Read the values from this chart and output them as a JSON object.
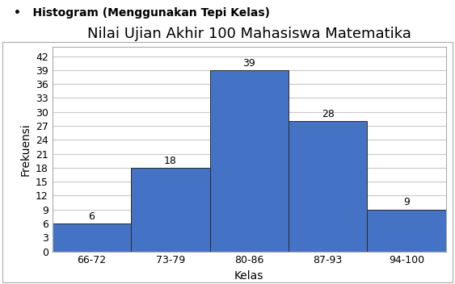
{
  "title": "Nilai Ujian Akhir 100 Mahasiswa Matematika",
  "xlabel": "Kelas",
  "ylabel": "Frekuensi",
  "categories": [
    "66-72",
    "73-79",
    "80-86",
    "87-93",
    "94-100"
  ],
  "values": [
    6,
    18,
    39,
    28,
    9
  ],
  "bar_color": "#4472C4",
  "bar_edge_color": "#2b2b2b",
  "yticks": [
    0,
    3,
    6,
    9,
    12,
    15,
    18,
    21,
    24,
    27,
    30,
    33,
    36,
    39,
    42
  ],
  "ylim": [
    0,
    44
  ],
  "title_fontsize": 13,
  "axis_label_fontsize": 10,
  "tick_fontsize": 9,
  "annotation_fontsize": 9,
  "header_text": "Histogram (Menggunakan Tepi Kelas)",
  "background_color": "#ffffff",
  "plot_bg_color": "#ffffff",
  "grid_color": "#c8c8c8",
  "border_color": "#aaaaaa",
  "header_bullet": "•"
}
